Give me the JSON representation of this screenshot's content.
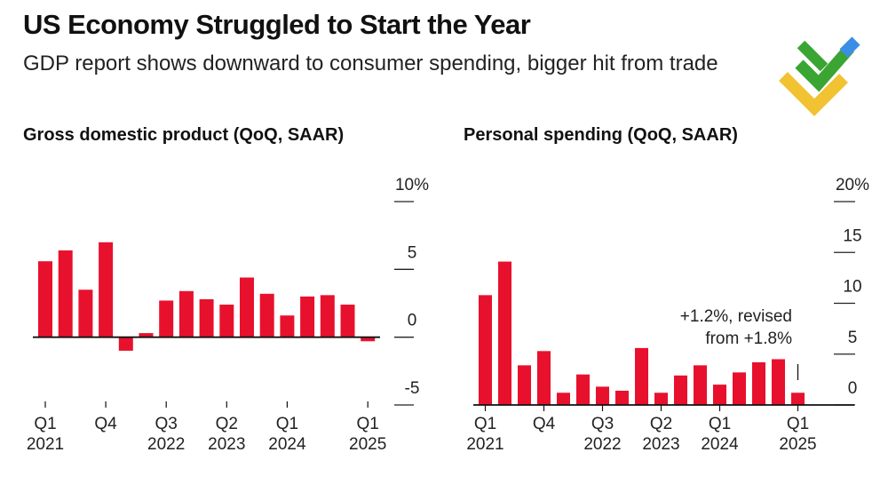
{
  "header": {
    "title": "US Economy Struggled to Start the Year",
    "subtitle": "GDP report shows downward to consumer spending, bigger hit from trade"
  },
  "logo": {
    "icon": "diamond-check-logo-icon",
    "colors": [
      "#3b8ee6",
      "#3aa532",
      "#f1c232"
    ]
  },
  "colors": {
    "bar": "#e8112d",
    "axis": "#111111",
    "text": "#222222"
  },
  "chart_data": [
    {
      "type": "bar",
      "title": "Gross domestic product (QoQ, SAAR)",
      "ylim": [
        -5,
        10
      ],
      "yticks": [
        10,
        5,
        0,
        -5
      ],
      "ytick_labels": [
        "10%",
        "5",
        "0",
        "-5"
      ],
      "values": [
        5.6,
        6.4,
        3.5,
        7.0,
        -1.0,
        0.3,
        2.7,
        3.4,
        2.8,
        2.4,
        4.4,
        3.2,
        1.6,
        3.0,
        3.1,
        2.4,
        -0.3
      ],
      "xtick_labels": [
        {
          "index": 0,
          "line1": "Q1",
          "line2": "2021"
        },
        {
          "index": 3,
          "line1": "Q4",
          "line2": ""
        },
        {
          "index": 6,
          "line1": "Q3",
          "line2": "2022"
        },
        {
          "index": 9,
          "line1": "Q2",
          "line2": "2023"
        },
        {
          "index": 12,
          "line1": "Q1",
          "line2": "2024"
        },
        {
          "index": 16,
          "line1": "Q1",
          "line2": "2025"
        }
      ]
    },
    {
      "type": "bar",
      "title": "Personal spending (QoQ, SAAR)",
      "ylim": [
        0,
        20
      ],
      "yticks": [
        20,
        15,
        10,
        5,
        0
      ],
      "ytick_labels": [
        "20%",
        "15",
        "10",
        "5",
        "0"
      ],
      "values": [
        10.8,
        14.1,
        3.9,
        5.3,
        1.2,
        3.0,
        1.8,
        1.4,
        5.6,
        1.2,
        2.9,
        3.9,
        2.0,
        3.2,
        4.2,
        4.5,
        1.2
      ],
      "annotation": {
        "index": 16,
        "line1": "+1.2%, revised",
        "line2": "from +1.8%"
      },
      "xtick_labels": [
        {
          "index": 0,
          "line1": "Q1",
          "line2": "2021"
        },
        {
          "index": 3,
          "line1": "Q4",
          "line2": ""
        },
        {
          "index": 6,
          "line1": "Q3",
          "line2": "2022"
        },
        {
          "index": 9,
          "line1": "Q2",
          "line2": "2023"
        },
        {
          "index": 12,
          "line1": "Q1",
          "line2": "2024"
        },
        {
          "index": 16,
          "line1": "Q1",
          "line2": "2025"
        }
      ]
    }
  ]
}
